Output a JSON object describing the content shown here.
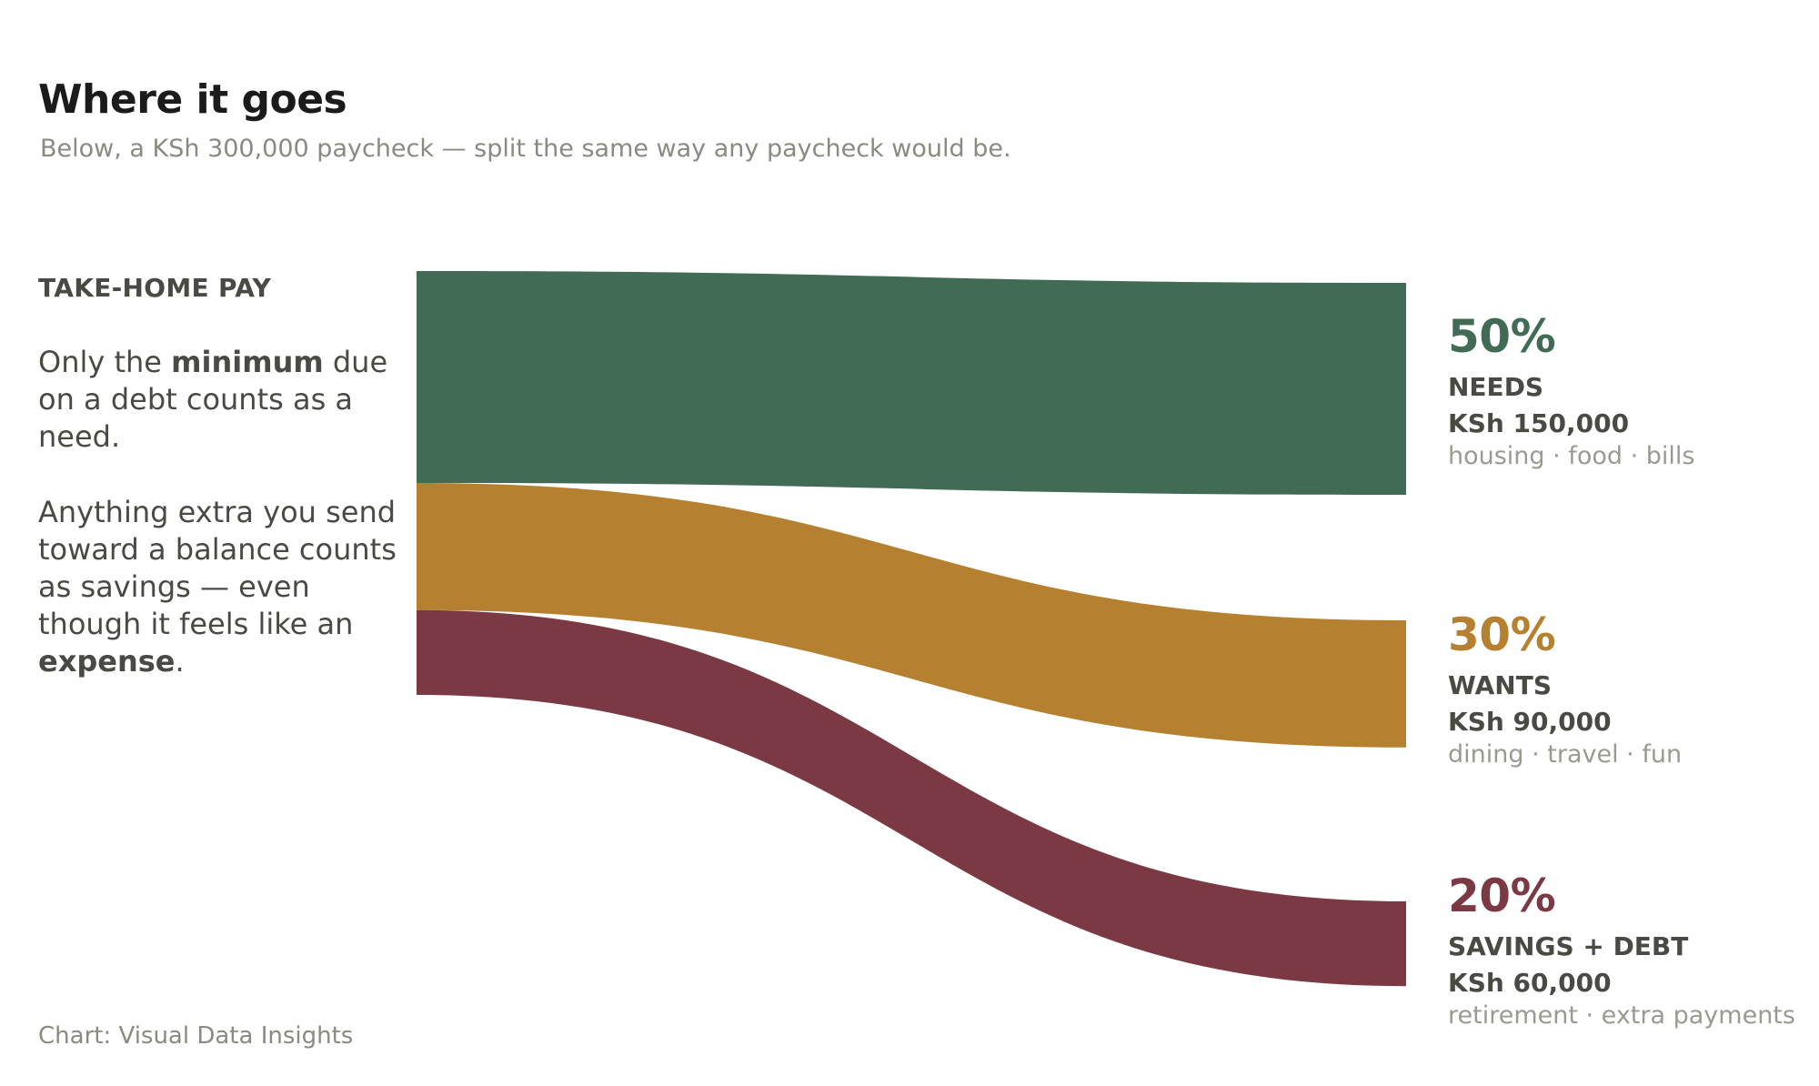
{
  "title": "Where it goes",
  "subtitle": "Below, a KSh 300,000 paycheck — split the same way any paycheck would be.",
  "left_label": "TAKE-HOME PAY",
  "note1": {
    "pre": "Only the ",
    "bold": "minimum",
    "post": " due on a debt counts as a need."
  },
  "note2": {
    "pre": "Anything extra you send toward a balance counts as savings — even though it feels like an ",
    "bold": "expense",
    "post": "."
  },
  "source": "Chart: Visual Data Insights",
  "chart_data": {
    "type": "sankey",
    "source_node": "TAKE-HOME PAY",
    "total": 300000,
    "currency": "KSh",
    "flows": [
      {
        "percent": 50,
        "percent_label": "50%",
        "name": "NEEDS",
        "amount": 150000,
        "amount_label": "KSh 150,000",
        "description": "housing · food · bills",
        "color": "#416b55"
      },
      {
        "percent": 30,
        "percent_label": "30%",
        "name": "WANTS",
        "amount": 90000,
        "amount_label": "KSh 90,000",
        "description": "dining · travel · fun",
        "color": "#b58130"
      },
      {
        "percent": 20,
        "percent_label": "20%",
        "name": "SAVINGS + DEBT",
        "amount": 60000,
        "amount_label": "KSh 60,000",
        "description": "retirement · extra payments",
        "color": "#7b3a43"
      }
    ]
  }
}
